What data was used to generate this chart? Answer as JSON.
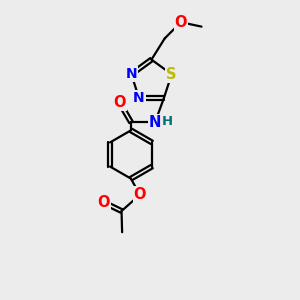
{
  "bg_color": "#ececec",
  "bond_color": "#000000",
  "atom_colors": {
    "N": "#0000ff",
    "O": "#ff0000",
    "S": "#bbbb00",
    "H": "#007070",
    "C": "#000000"
  },
  "bond_width": 1.6,
  "font_size": 10.5,
  "figsize": [
    3.0,
    3.0
  ],
  "dpi": 100,
  "xlim": [
    0,
    10
  ],
  "ylim": [
    0,
    10
  ]
}
